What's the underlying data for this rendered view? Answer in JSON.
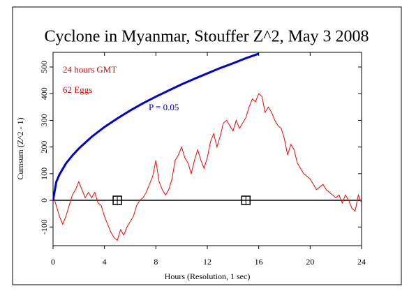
{
  "chart_data": {
    "type": "line",
    "title": "Cyclone in Myanmar, Stouffer Z^2, May 3 2008",
    "xlabel": "Hours (Resolution, 1 sec)",
    "ylabel": "Cumsum (Z^2 - 1)",
    "annotations": [
      {
        "text": "24 hours GMT",
        "color": "#e00000"
      },
      {
        "text": "62 Eggs",
        "color": "#e00000"
      },
      {
        "text": "P = 0.05",
        "color": "#0000cc"
      }
    ],
    "xlim": [
      0,
      24
    ],
    "xticks": [
      0,
      4,
      8,
      12,
      16,
      20,
      24
    ],
    "ylim": [
      -170,
      555
    ],
    "yticks": [
      -100,
      0,
      100,
      200,
      300,
      400,
      500
    ],
    "hline": 0,
    "series": [
      {
        "color": "#ff0000",
        "x": [
          0,
          0.25,
          0.5,
          0.75,
          1,
          1.25,
          1.5,
          1.75,
          2,
          2.25,
          2.5,
          2.75,
          3,
          3.25,
          3.5,
          3.75,
          4,
          4.25,
          4.5,
          4.75,
          5,
          5.25,
          5.5,
          5.75,
          6,
          6.25,
          6.5,
          6.75,
          7,
          7.25,
          7.5,
          7.75,
          8,
          8.25,
          8.5,
          8.75,
          9,
          9.25,
          9.5,
          9.75,
          10,
          10.25,
          10.5,
          10.75,
          11,
          11.25,
          11.5,
          11.75,
          12,
          12.25,
          12.5,
          12.75,
          13,
          13.25,
          13.5,
          13.75,
          14,
          14.25,
          14.5,
          14.75,
          15,
          15.25,
          15.5,
          15.75,
          16,
          16.25,
          16.5,
          16.75,
          17,
          17.25,
          17.5,
          17.75,
          18,
          18.25,
          18.5,
          18.75,
          19,
          19.25,
          19.5,
          19.75,
          20,
          20.25,
          20.5,
          20.75,
          21,
          21.25,
          21.5,
          21.75,
          22,
          22.25,
          22.5,
          22.75,
          23,
          23.25,
          23.5,
          23.75,
          24
        ],
        "values": [
          20,
          -20,
          -60,
          -90,
          -60,
          -20,
          20,
          40,
          70,
          40,
          10,
          30,
          10,
          30,
          -10,
          -20,
          -60,
          -90,
          -120,
          -140,
          -150,
          -110,
          -130,
          -100,
          -80,
          -60,
          -20,
          0,
          10,
          30,
          60,
          90,
          150,
          70,
          40,
          20,
          40,
          80,
          150,
          170,
          200,
          160,
          140,
          100,
          150,
          190,
          150,
          120,
          160,
          220,
          250,
          200,
          240,
          290,
          300,
          280,
          260,
          300,
          270,
          290,
          310,
          350,
          380,
          370,
          400,
          390,
          330,
          350,
          330,
          300,
          280,
          270,
          230,
          170,
          210,
          190,
          140,
          120,
          100,
          90,
          80,
          60,
          40,
          50,
          60,
          40,
          30,
          20,
          10,
          20,
          -10,
          20,
          0,
          -30,
          -40,
          20,
          -10
        ]
      },
      {
        "color": "#0000dd",
        "x": [
          0,
          0.25,
          0.5,
          1,
          1.5,
          2,
          3,
          4,
          5,
          6,
          7,
          8,
          9,
          10,
          11,
          12,
          13,
          14,
          15,
          16
        ],
        "values": [
          0,
          69,
          97,
          138,
          168,
          194,
          238,
          275,
          307,
          337,
          364,
          389,
          412,
          435,
          456,
          476,
          496,
          514,
          533,
          550
        ]
      }
    ],
    "markers": {
      "x": [
        5,
        15
      ],
      "values": [
        0,
        0
      ],
      "color": "#000000"
    }
  }
}
